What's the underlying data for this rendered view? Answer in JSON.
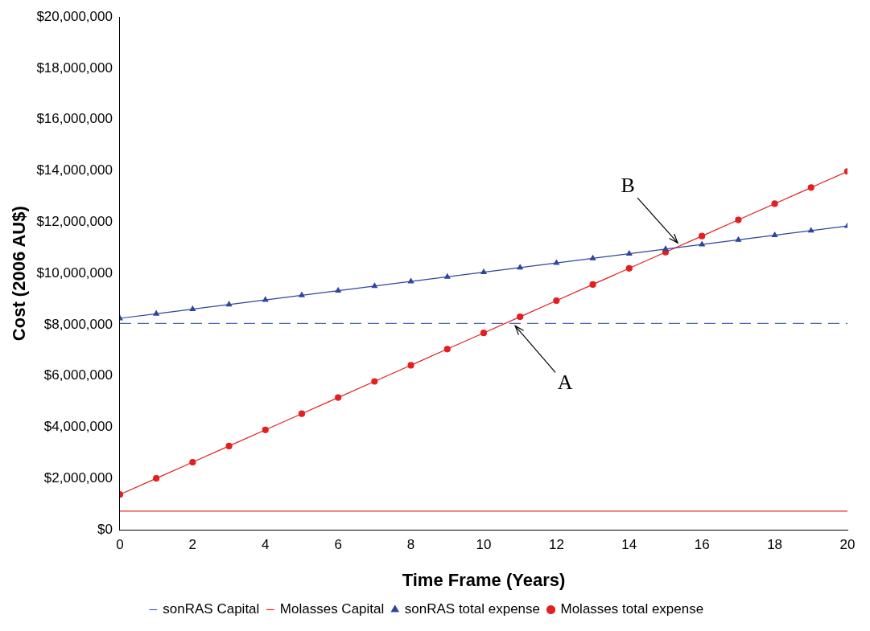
{
  "chart_data": {
    "type": "line",
    "xlabel": "Time Frame (Years)",
    "ylabel": "Cost (2006 AU$)",
    "xlim": [
      0,
      20
    ],
    "xticks": [
      0,
      2,
      4,
      6,
      8,
      10,
      12,
      14,
      16,
      18,
      20
    ],
    "ylim": [
      0,
      20000000
    ],
    "yticks": [
      {
        "value": 0,
        "label": "$0"
      },
      {
        "value": 2000000,
        "label": "$2,000,000"
      },
      {
        "value": 4000000,
        "label": "$4,000,000"
      },
      {
        "value": 6000000,
        "label": "$6,000,000"
      },
      {
        "value": 8000000,
        "label": "$8,000,000"
      },
      {
        "value": 10000000,
        "label": "$10,000,000"
      },
      {
        "value": 12000000,
        "label": "$12,000,000"
      },
      {
        "value": 14000000,
        "label": "$14,000,000"
      },
      {
        "value": 16000000,
        "label": "$16,000,000"
      },
      {
        "value": 18000000,
        "label": "$18,000,000"
      },
      {
        "value": 20000000,
        "label": "$20,000,000"
      }
    ],
    "grid": false,
    "legend": "bottom",
    "series": [
      {
        "name": "sonRAS Capital",
        "color": "#4a63b8",
        "marker": "none",
        "line_style": "dashed",
        "x": [
          0,
          20
        ],
        "values": [
          8050000,
          8050000
        ]
      },
      {
        "name": "Molasses Capital",
        "color": "#ee2b2b",
        "marker": "none",
        "line_style": "solid",
        "x": [
          0,
          20
        ],
        "values": [
          730000,
          730000
        ]
      },
      {
        "name": "sonRAS total expense",
        "color": "#2e45a0",
        "marker": "triangle",
        "line_style": "solid",
        "x": [
          0,
          1,
          2,
          3,
          4,
          5,
          6,
          7,
          8,
          9,
          10,
          11,
          12,
          13,
          14,
          15,
          16,
          17,
          18,
          19,
          20
        ],
        "values": [
          8250000,
          8430000,
          8610000,
          8790000,
          8970000,
          9150000,
          9330000,
          9510000,
          9690000,
          9870000,
          10050000,
          10230000,
          10410000,
          10590000,
          10770000,
          10950000,
          11130000,
          11310000,
          11490000,
          11670000,
          11850000
        ]
      },
      {
        "name": "Molasses total expense",
        "color": "#e41f1f",
        "marker": "circle",
        "line_style": "solid",
        "x": [
          0,
          1,
          2,
          3,
          4,
          5,
          6,
          7,
          8,
          9,
          10,
          11,
          12,
          13,
          14,
          15,
          16,
          17,
          18,
          19,
          20
        ],
        "values": [
          1380000,
          2010000,
          2640000,
          3270000,
          3900000,
          4530000,
          5160000,
          5790000,
          6420000,
          7050000,
          7680000,
          8310000,
          8940000,
          9570000,
          10200000,
          10830000,
          11460000,
          12090000,
          12720000,
          13350000,
          13980000
        ]
      }
    ],
    "annotations": [
      {
        "text": "A",
        "x": 10.8,
        "y": 8050000
      },
      {
        "text": "B",
        "x": 15.4,
        "y": 11100000
      }
    ]
  }
}
